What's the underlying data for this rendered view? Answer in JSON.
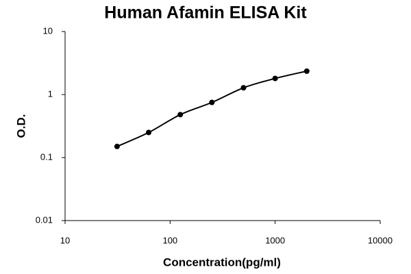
{
  "chart_data": {
    "type": "line",
    "title": "Human Afamin ELISA Kit",
    "x_label": "Concentration(pg/ml)",
    "y_label": "O.D.",
    "x": [
      31.25,
      62.5,
      125,
      250,
      500,
      1000,
      2000
    ],
    "series": [
      {
        "color": "#000000",
        "values": [
          0.15,
          0.25,
          0.48,
          0.75,
          1.28,
          1.8,
          2.35
        ]
      }
    ],
    "xlim": [
      10,
      10000
    ],
    "xticks": [
      10,
      100,
      1000,
      10000
    ],
    "ylim": [
      0.01,
      10
    ],
    "yticks": [
      0.01,
      0.1,
      1,
      10
    ],
    "xscale": "log",
    "yscale": "log",
    "markers": true,
    "grid": false
  }
}
